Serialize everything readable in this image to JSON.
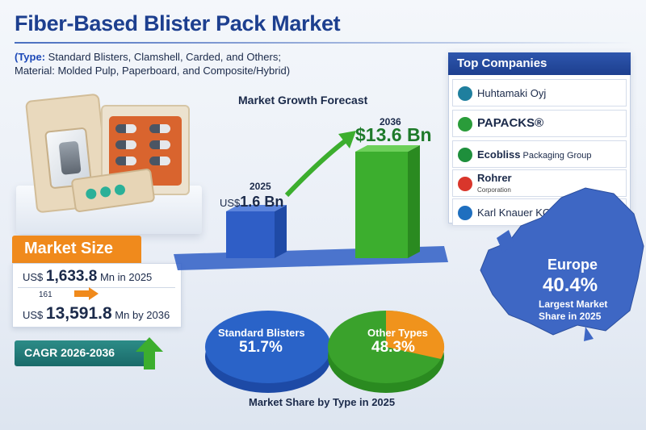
{
  "header": {
    "title": "Fiber-Based Blister Pack Market",
    "subtitle_type_key": "(Type:",
    "subtitle_line1_rest": " Standard Blisters, Clamshell, Carded, and Others;",
    "subtitle_line2": "Material: Molded Pulp, Paperboard, and Composite/Hybrid)"
  },
  "market_size": {
    "label": "Market Size",
    "row_2025_prefix": "US$",
    "row_2025_value": "1,633.8",
    "row_2025_suffix": "Mn in 2025",
    "mark": "161",
    "row_2036_prefix": "US$",
    "row_2036_value": "13,591.8",
    "row_2036_suffix": "Mn by 2036"
  },
  "cagr": {
    "label": "CAGR 2026-2036"
  },
  "growth": {
    "title": "Market Growth Forecast",
    "year_2025": "2025",
    "value_2025_prefix": "US$",
    "value_2025": "1.6 Bn",
    "year_2036": "2036",
    "value_2036": "$13.6 Bn"
  },
  "top_companies": {
    "title": "Top Companies",
    "items": [
      {
        "name": "Huhtamaki Oyj",
        "logo_color": "#1f7f9e"
      },
      {
        "name": "PAPACKS®",
        "logo_color": "#2a9c3a"
      },
      {
        "name": "Ecobliss",
        "suffix": " Packaging Group",
        "logo_color": "#1e8f3c"
      },
      {
        "name": "Rohrer",
        "sub": "Corporation",
        "logo_color": "#d9362b"
      },
      {
        "name": "Karl Knauer KG",
        "logo_color": "#1f6fbf"
      }
    ]
  },
  "region": {
    "name": "Europe",
    "share": "40.4%",
    "note_line1": "Largest Market",
    "note_line2": "Share in 2025"
  },
  "type_share": {
    "caption": "Market Share by Type in 2025",
    "a_label": "Standard Blisters",
    "a_value": "51.7%",
    "b_label": "Other Types",
    "b_value": "48.3%"
  },
  "colors": {
    "title_blue": "#1d3f8f",
    "orange": "#f08a1c",
    "teal": "#1a6a6a",
    "bar_blue": "#2f5ec6",
    "bar_green": "#3cae2e",
    "pie_blue": "#2a63c8",
    "pie_green": "#3aa22c",
    "pie_orange": "#f0931c"
  }
}
